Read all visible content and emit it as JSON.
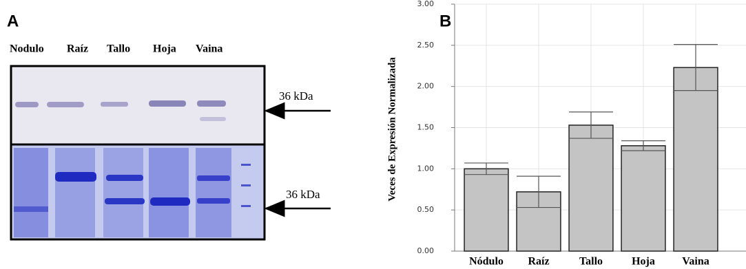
{
  "panel_a": {
    "label": "A",
    "lanes": [
      "Nodulo",
      "Raíz",
      "Tallo",
      "Hoja",
      "Vaina"
    ],
    "marker_labels": [
      "36 kDa",
      "36 kDa"
    ]
  },
  "chart_data": {
    "type": "bar",
    "label": "B",
    "y_label": "Veces de Expresión Normalizada",
    "categories": [
      "Nódulo",
      "Raíz",
      "Tallo",
      "Hoja",
      "Vaina"
    ],
    "values": [
      1.0,
      0.72,
      1.53,
      1.28,
      2.23
    ],
    "errors": [
      0.07,
      0.19,
      0.16,
      0.06,
      0.28
    ],
    "color": "#c4c4c4",
    "ylim": [
      0,
      3
    ],
    "yticks": [
      {
        "value": 0,
        "label": "0.00"
      },
      {
        "value": 0.5,
        "label": "0.50"
      },
      {
        "value": 1,
        "label": "1.00"
      },
      {
        "value": 1.5,
        "label": "1.50"
      },
      {
        "value": 2,
        "label": "2.00"
      },
      {
        "value": 2.5,
        "label": "2.50"
      },
      {
        "value": 3,
        "label": "3.00"
      }
    ],
    "grid": true
  }
}
